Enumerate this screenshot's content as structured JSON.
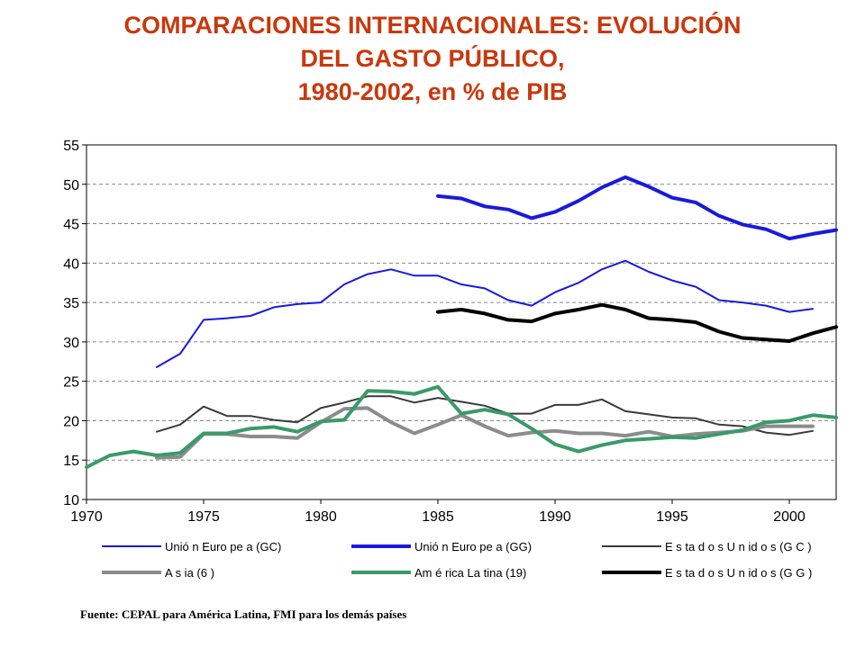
{
  "title_lines": [
    "COMPARACIONES INTERNACIONALES: EVOLUCIÓN",
    "DEL GASTO PÚBLICO,",
    "1980-2002, en % de PIB"
  ],
  "source": "Fuente: CEPAL para América Latina, FMI para los demás países",
  "colors": {
    "title": "#c8380c",
    "eu_gc": "#1a1adc",
    "eu_gg": "#1a1adc",
    "us_gc": "#3a3a3a",
    "asia": "#8c8c8c",
    "latam": "#3a9a6a",
    "us_gg": "#000000"
  },
  "chart_data": {
    "type": "line",
    "title": "COMPARACIONES INTERNACIONALES: EVOLUCIÓN DEL GASTO PÚBLICO, 1980-2002, en % de PIB",
    "xlabel": "",
    "ylabel": "",
    "xlim": [
      1970,
      2002
    ],
    "ylim": [
      10,
      55
    ],
    "x_ticks": [
      1970,
      1975,
      1980,
      1985,
      1990,
      1995,
      2000
    ],
    "y_ticks": [
      10,
      15,
      20,
      25,
      30,
      35,
      40,
      45,
      50,
      55
    ],
    "grid": "horizontal dashed",
    "legend_position": "bottom",
    "series": [
      {
        "name": "Unió n Euro pe a (GC)",
        "color_key": "eu_gc",
        "style": "solid",
        "weight": "thin",
        "x": [
          1973,
          1974,
          1975,
          1976,
          1977,
          1978,
          1979,
          1980,
          1981,
          1982,
          1983,
          1984,
          1985,
          1986,
          1987,
          1988,
          1989,
          1990,
          1991,
          1992,
          1993,
          1994,
          1995,
          1996,
          1997,
          1998,
          1999,
          2000,
          2001
        ],
        "y": [
          26.8,
          28.5,
          32.8,
          33.0,
          33.3,
          34.4,
          34.8,
          35.0,
          37.3,
          38.6,
          39.2,
          38.4,
          38.4,
          37.3,
          36.8,
          35.3,
          34.6,
          36.3,
          37.5,
          39.2,
          40.3,
          38.9,
          37.8,
          37.0,
          35.3,
          35.0,
          34.6,
          33.8,
          34.2
        ]
      },
      {
        "name": "Unió n Euro pe a (GG)",
        "color_key": "eu_gg",
        "style": "solid",
        "weight": "thick",
        "x": [
          1985,
          1986,
          1987,
          1988,
          1989,
          1990,
          1991,
          1992,
          1993,
          1994,
          1995,
          1996,
          1997,
          1998,
          1999,
          2000,
          2001,
          2002
        ],
        "y": [
          48.5,
          48.2,
          47.2,
          46.8,
          45.7,
          46.5,
          47.9,
          49.6,
          50.9,
          49.7,
          48.3,
          47.7,
          46.0,
          44.9,
          44.3,
          43.1,
          43.7,
          44.2
        ]
      },
      {
        "name": "E s ta d o s U n id o s (G C )",
        "color_key": "us_gc",
        "style": "solid",
        "weight": "thin",
        "x": [
          1973,
          1974,
          1975,
          1976,
          1977,
          1978,
          1979,
          1980,
          1981,
          1982,
          1983,
          1984,
          1985,
          1986,
          1987,
          1988,
          1989,
          1990,
          1991,
          1992,
          1993,
          1994,
          1995,
          1996,
          1997,
          1998,
          1999,
          2000,
          2001
        ],
        "y": [
          18.6,
          19.5,
          21.8,
          20.6,
          20.6,
          20.1,
          19.8,
          21.6,
          22.3,
          23.1,
          23.1,
          22.3,
          22.9,
          22.4,
          21.9,
          20.9,
          20.9,
          22.0,
          22.0,
          22.7,
          21.2,
          20.8,
          20.4,
          20.3,
          19.5,
          19.3,
          18.5,
          18.2,
          18.7
        ]
      },
      {
        "name": "A s ia (6 )",
        "color_key": "asia",
        "style": "solid",
        "weight": "thick",
        "x": [
          1973,
          1974,
          1975,
          1976,
          1977,
          1978,
          1979,
          1980,
          1981,
          1982,
          1983,
          1984,
          1985,
          1986,
          1987,
          1988,
          1989,
          1990,
          1991,
          1992,
          1993,
          1994,
          1995,
          1996,
          1997,
          1998,
          1999,
          2000,
          2001
        ],
        "y": [
          15.3,
          15.4,
          18.3,
          18.3,
          18.0,
          18.0,
          17.8,
          19.8,
          21.5,
          21.6,
          19.8,
          18.4,
          19.5,
          20.7,
          19.3,
          18.1,
          18.5,
          18.7,
          18.4,
          18.4,
          18.1,
          18.6,
          18.0,
          18.3,
          18.5,
          18.7,
          19.3,
          19.3,
          19.3
        ]
      },
      {
        "name": "Am é rica La tina (19)",
        "color_key": "latam",
        "style": "solid",
        "weight": "thick",
        "x": [
          1970,
          1971,
          1972,
          1973,
          1974,
          1975,
          1976,
          1977,
          1978,
          1979,
          1980,
          1981,
          1982,
          1983,
          1984,
          1985,
          1986,
          1987,
          1988,
          1989,
          1990,
          1991,
          1992,
          1993,
          1994,
          1995,
          1996,
          1997,
          1998,
          1999,
          2000,
          2001,
          2002
        ],
        "y": [
          14.1,
          15.6,
          16.1,
          15.6,
          15.9,
          18.4,
          18.4,
          19.0,
          19.2,
          18.6,
          19.9,
          20.1,
          23.8,
          23.7,
          23.4,
          24.3,
          20.9,
          21.4,
          20.8,
          19.0,
          17.0,
          16.1,
          16.9,
          17.5,
          17.7,
          17.9,
          17.8,
          18.3,
          18.8,
          19.8,
          20.0,
          20.7,
          20.4
        ]
      },
      {
        "name": "E s ta d o s U n id o s (G G )",
        "color_key": "us_gg",
        "style": "solid",
        "weight": "thick",
        "x": [
          1985,
          1986,
          1987,
          1988,
          1989,
          1990,
          1991,
          1992,
          1993,
          1994,
          1995,
          1996,
          1997,
          1998,
          1999,
          2000,
          2001,
          2002
        ],
        "y": [
          33.8,
          34.1,
          33.6,
          32.8,
          32.6,
          33.6,
          34.1,
          34.7,
          34.1,
          33.0,
          32.8,
          32.5,
          31.3,
          30.5,
          30.3,
          30.1,
          31.1,
          31.9
        ]
      }
    ]
  }
}
